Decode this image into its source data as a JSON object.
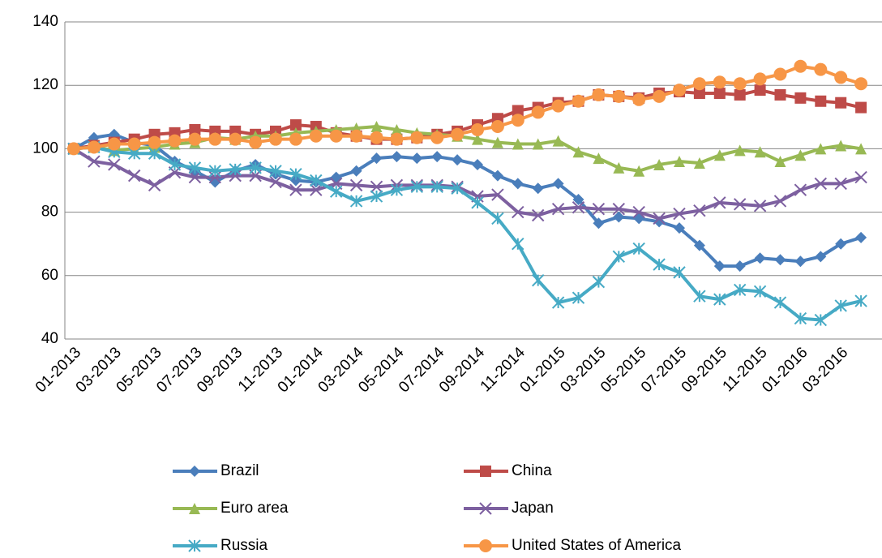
{
  "chart_data": {
    "type": "line",
    "categories": [
      "01-2013",
      null,
      "03-2013",
      null,
      "05-2013",
      null,
      "07-2013",
      null,
      "09-2013",
      null,
      "11-2013",
      null,
      "01-2014",
      null,
      "03-2014",
      null,
      "05-2014",
      null,
      "07-2014",
      null,
      "09-2014",
      null,
      "11-2014",
      null,
      "01-2015",
      null,
      "03-2015",
      null,
      "05-2015",
      null,
      "07-2015",
      null,
      "09-2015",
      null,
      "11-2015",
      null,
      "01-2016",
      null,
      "03-2016",
      null
    ],
    "ylim": [
      40,
      140
    ],
    "yticks": [
      40,
      60,
      80,
      100,
      120,
      140
    ],
    "grid": true,
    "series": [
      {
        "name": "Brazil",
        "color": "#4a7ebb",
        "marker": "diamond",
        "values": [
          100,
          103.5,
          104.5,
          102,
          101,
          96,
          93,
          89.5,
          93,
          95,
          92,
          90,
          89.5,
          91,
          93,
          97,
          97.5,
          97,
          97.5,
          96.5,
          95,
          91.5,
          89,
          87.5,
          89,
          84,
          76.5,
          78.5,
          78,
          77,
          75,
          69.5,
          63,
          63,
          65.5,
          65,
          64.5,
          66,
          70,
          72
        ]
      },
      {
        "name": "China",
        "color": "#be4b48",
        "marker": "square",
        "values": [
          100,
          101,
          102,
          103,
          104.5,
          105,
          106,
          105.5,
          105.5,
          104.5,
          105.5,
          107.5,
          107,
          105,
          104,
          103,
          103,
          103.5,
          104.5,
          105.5,
          107.5,
          109.5,
          112,
          113,
          114.5,
          115,
          117,
          116.5,
          116,
          117.5,
          118,
          117.5,
          117.5,
          117,
          118.5,
          117,
          116,
          115,
          114.5,
          113
        ]
      },
      {
        "name": "Euro area",
        "color": "#98b954",
        "marker": "triangle",
        "values": [
          100,
          100.5,
          99.5,
          100,
          100.5,
          101.5,
          102,
          103.5,
          103,
          104,
          104,
          105,
          105.5,
          106,
          106.5,
          107,
          106,
          105,
          104.5,
          104,
          103,
          102,
          101.5,
          101.5,
          102.5,
          99,
          97,
          94,
          93,
          95,
          96,
          95.5,
          98,
          99.5,
          99,
          96,
          98,
          100,
          101,
          100
        ]
      },
      {
        "name": "Japan",
        "color": "#7d60a0",
        "marker": "x",
        "values": [
          100,
          96,
          95,
          91.5,
          88.5,
          92.5,
          91,
          91,
          91.5,
          91.5,
          89.5,
          87,
          87,
          89,
          88.5,
          88,
          88.5,
          88.5,
          88.5,
          88,
          85,
          85.5,
          80,
          79,
          81,
          81.5,
          81,
          81,
          80,
          78,
          79.5,
          80.5,
          83,
          82.5,
          82,
          83.5,
          87,
          89,
          89,
          91
        ]
      },
      {
        "name": "Russia",
        "color": "#46aac5",
        "marker": "star",
        "values": [
          100,
          100.5,
          99,
          98.5,
          98.5,
          95,
          94,
          93,
          93.5,
          94,
          93,
          92,
          90,
          86.5,
          83.5,
          85,
          87,
          88,
          88,
          87.5,
          83,
          78,
          70,
          58.5,
          51.5,
          53,
          58,
          66,
          68.5,
          63.5,
          61,
          53.5,
          52.5,
          55.5,
          55,
          51.5,
          46.5,
          46,
          50.5,
          52
        ]
      },
      {
        "name": "United States of America",
        "color": "#f79646",
        "marker": "circle",
        "values": [
          100,
          100.5,
          101.5,
          101.5,
          102,
          102.5,
          103,
          103,
          103,
          102,
          103,
          103,
          104,
          104,
          104,
          103.5,
          103,
          103.5,
          103.5,
          104.5,
          106,
          107,
          109,
          111.5,
          113.5,
          115,
          117,
          116.5,
          115.5,
          116.5,
          118.5,
          120.5,
          121,
          120.5,
          122,
          123.5,
          126,
          125,
          122.5,
          120.5
        ]
      }
    ]
  }
}
